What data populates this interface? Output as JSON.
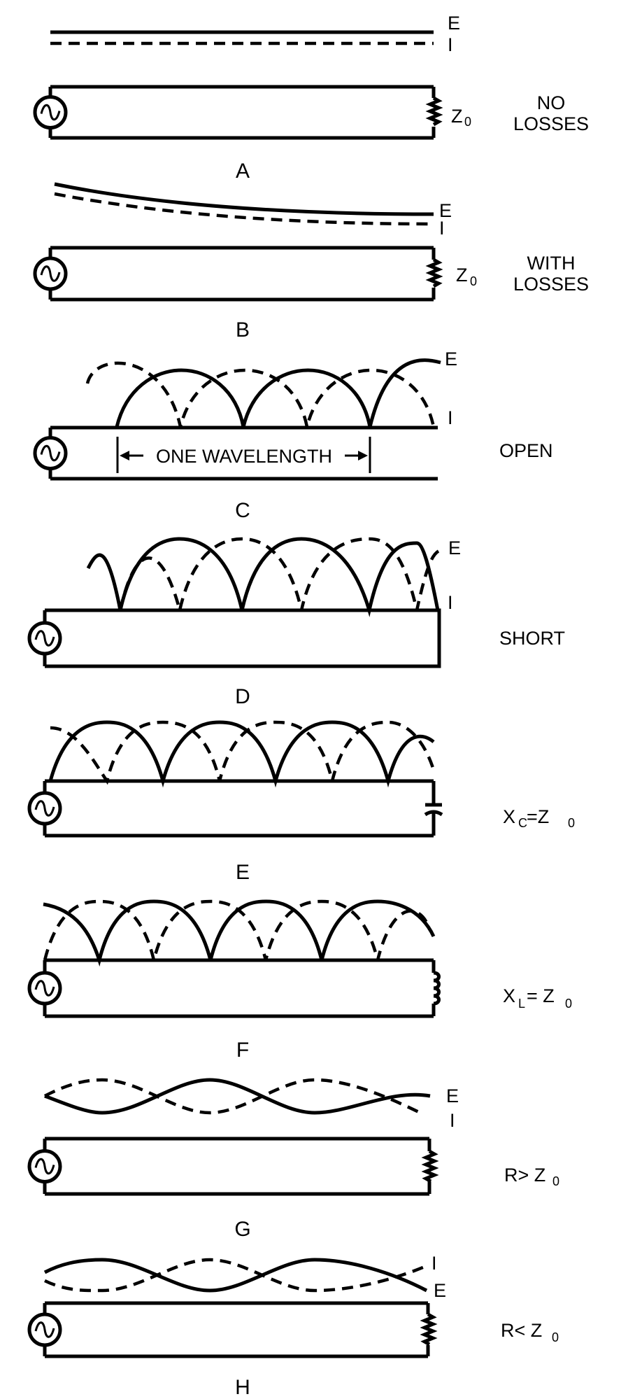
{
  "waveform_labels": {
    "voltage": "E",
    "current": "I"
  },
  "impedance_symbol": "Z",
  "impedance_subscript": "0",
  "panels": [
    {
      "letter": "A",
      "caption_lines": [
        "NO",
        "LOSSES"
      ],
      "load": "resistor"
    },
    {
      "letter": "B",
      "caption_lines": [
        "WITH",
        "LOSSES"
      ],
      "load": "resistor"
    },
    {
      "letter": "C",
      "caption": "OPEN",
      "load": "open",
      "span_label": "ONE WAVELENGTH"
    },
    {
      "letter": "D",
      "caption": "SHORT",
      "load": "short"
    },
    {
      "letter": "E",
      "caption_prefix": "X",
      "caption_sub": "C",
      "caption_suffix": " =Z",
      "caption_sub2": "0",
      "load": "capacitor"
    },
    {
      "letter": "F",
      "caption_prefix": "X",
      "caption_sub": "L",
      "caption_suffix": "= Z",
      "caption_sub2": "0",
      "load": "inductor"
    },
    {
      "letter": "G",
      "caption_prefix": "R> Z",
      "caption_sub2": "0",
      "load": "resistor"
    },
    {
      "letter": "H",
      "caption_prefix": "R< Z",
      "caption_sub2": "0",
      "load": "resistor"
    }
  ],
  "icons": [
    "ac-source-icon",
    "resistor-icon",
    "capacitor-icon",
    "inductor-icon",
    "arrow-left-icon",
    "arrow-right-icon"
  ]
}
